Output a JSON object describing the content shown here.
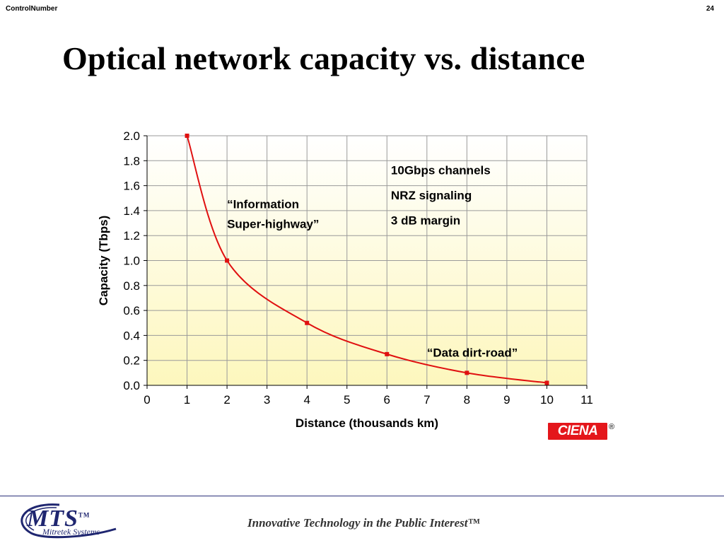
{
  "header": {
    "left": "ControlNumber",
    "right": "24"
  },
  "title": "Optical network capacity vs. distance",
  "chart_data": {
    "type": "line",
    "xlabel": "Distance (thousands km)",
    "ylabel": "Capacity (Tbps)",
    "xlim": [
      0,
      11
    ],
    "ylim": [
      0,
      2.0
    ],
    "xticks": [
      "0",
      "1",
      "2",
      "3",
      "4",
      "5",
      "6",
      "7",
      "8",
      "9",
      "10",
      "11"
    ],
    "yticks": [
      "0.0",
      "0.2",
      "0.4",
      "0.6",
      "0.8",
      "1.0",
      "1.2",
      "1.4",
      "1.6",
      "1.8",
      "2.0"
    ],
    "grid": true,
    "series": [
      {
        "color": "#e01010",
        "points": [
          [
            1,
            2.0
          ],
          [
            2,
            1.0
          ],
          [
            4,
            0.5
          ],
          [
            6,
            0.25
          ],
          [
            8,
            0.1
          ],
          [
            10,
            0.02
          ]
        ]
      }
    ],
    "annotations": [
      {
        "text": "“Information",
        "x": 2.0,
        "y": 1.42
      },
      {
        "text": "Super-highway”",
        "x": 2.0,
        "y": 1.26
      },
      {
        "text": "10Gbps channels",
        "x": 6.1,
        "y": 1.69
      },
      {
        "text": "NRZ signaling",
        "x": 6.1,
        "y": 1.49
      },
      {
        "text": "3 dB margin",
        "x": 6.1,
        "y": 1.29
      },
      {
        "text": "“Data dirt-road”",
        "x": 7.0,
        "y": 0.23
      }
    ]
  },
  "logo_ciena": "CIENA",
  "logo_ciena_mark": "®",
  "footer": {
    "logo": "MTS",
    "logo_tm": "TM",
    "logo_sub": "Mitretek Systems",
    "tagline": "Innovative Technology in the Public Interest™"
  },
  "colors": {
    "curve": "#e01010",
    "footer_rule": "#2b2f7a",
    "brand": "#1f2670",
    "ciena": "#e4161b"
  }
}
